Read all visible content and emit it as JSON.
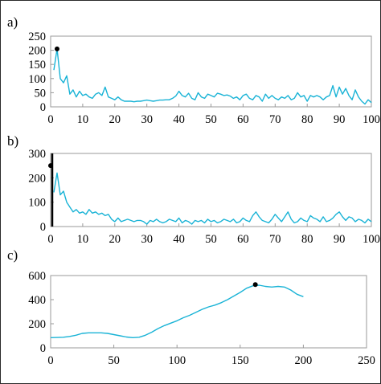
{
  "chart_data": [
    {
      "panel_label": "a)",
      "type": "line",
      "title": "",
      "xlabel": "",
      "ylabel": "",
      "xlim": [
        0,
        100
      ],
      "ylim": [
        0,
        250
      ],
      "xticks": [
        0,
        10,
        20,
        30,
        40,
        50,
        60,
        70,
        80,
        90,
        100
      ],
      "yticks": [
        0,
        50,
        100,
        150,
        200,
        250
      ],
      "grid": false,
      "line_color": "#19b3d6",
      "marker": {
        "x": 2,
        "y": 205,
        "color": "#000000"
      },
      "series": [
        {
          "x": [
            1,
            2,
            3,
            4,
            5,
            6,
            7,
            8,
            9,
            10,
            11,
            12,
            13,
            14,
            15,
            16,
            17,
            18,
            19,
            20,
            21,
            22,
            23,
            24,
            25,
            26,
            27,
            28,
            29,
            30,
            31,
            32,
            33,
            34,
            35,
            36,
            37,
            38,
            39,
            40,
            41,
            42,
            43,
            44,
            45,
            46,
            47,
            48,
            49,
            50,
            51,
            52,
            53,
            54,
            55,
            56,
            57,
            58,
            59,
            60,
            61,
            62,
            63,
            64,
            65,
            66,
            67,
            68,
            69,
            70,
            71,
            72,
            73,
            74,
            75,
            76,
            77,
            78,
            79,
            80,
            81,
            82,
            83,
            84,
            85,
            86,
            87,
            88,
            89,
            90,
            91,
            92,
            93,
            94,
            95,
            96,
            97,
            98,
            99,
            100
          ],
          "values": [
            130,
            205,
            100,
            85,
            110,
            45,
            60,
            35,
            55,
            40,
            45,
            35,
            30,
            45,
            50,
            40,
            70,
            35,
            30,
            25,
            35,
            25,
            20,
            20,
            20,
            18,
            20,
            20,
            22,
            24,
            22,
            20,
            22,
            24,
            24,
            25,
            25,
            30,
            38,
            55,
            40,
            35,
            48,
            30,
            25,
            50,
            35,
            30,
            45,
            40,
            35,
            48,
            45,
            40,
            42,
            38,
            30,
            35,
            25,
            40,
            45,
            30,
            25,
            40,
            35,
            20,
            45,
            30,
            40,
            30,
            25,
            35,
            30,
            40,
            25,
            30,
            50,
            35,
            40,
            20,
            40,
            35,
            40,
            35,
            25,
            35,
            40,
            75,
            35,
            70,
            45,
            65,
            40,
            25,
            60,
            35,
            20,
            10,
            25,
            15
          ]
        }
      ]
    },
    {
      "panel_label": "b)",
      "type": "line",
      "title": "",
      "xlabel": "",
      "ylabel": "",
      "xlim": [
        0,
        100
      ],
      "ylim": [
        0,
        300
      ],
      "xticks": [
        0,
        10,
        20,
        30,
        40,
        50,
        60,
        70,
        80,
        90,
        100
      ],
      "yticks": [
        0,
        100,
        200,
        300
      ],
      "grid": false,
      "line_color": "#19b3d6",
      "marker": {
        "x": 0,
        "y": 250,
        "color": "#000000"
      },
      "vline": {
        "x": 0.5,
        "y_from": 0,
        "y_to": 300,
        "color": "#000000"
      },
      "series": [
        {
          "x": [
            1,
            2,
            3,
            4,
            5,
            6,
            7,
            8,
            9,
            10,
            11,
            12,
            13,
            14,
            15,
            16,
            17,
            18,
            19,
            20,
            21,
            22,
            23,
            24,
            25,
            26,
            27,
            28,
            29,
            30,
            31,
            32,
            33,
            34,
            35,
            36,
            37,
            38,
            39,
            40,
            41,
            42,
            43,
            44,
            45,
            46,
            47,
            48,
            49,
            50,
            51,
            52,
            53,
            54,
            55,
            56,
            57,
            58,
            59,
            60,
            61,
            62,
            63,
            64,
            65,
            66,
            67,
            68,
            69,
            70,
            71,
            72,
            73,
            74,
            75,
            76,
            77,
            78,
            79,
            80,
            81,
            82,
            83,
            84,
            85,
            86,
            87,
            88,
            89,
            90,
            91,
            92,
            93,
            94,
            95,
            96,
            97,
            98,
            99,
            100
          ],
          "values": [
            140,
            220,
            130,
            145,
            100,
            80,
            60,
            70,
            55,
            60,
            50,
            70,
            55,
            60,
            50,
            55,
            45,
            50,
            30,
            20,
            35,
            20,
            25,
            30,
            25,
            20,
            25,
            25,
            20,
            10,
            25,
            20,
            30,
            20,
            15,
            20,
            30,
            25,
            20,
            35,
            15,
            25,
            20,
            10,
            25,
            20,
            25,
            15,
            30,
            20,
            25,
            15,
            20,
            30,
            25,
            20,
            30,
            15,
            20,
            35,
            25,
            20,
            45,
            60,
            40,
            25,
            20,
            15,
            30,
            50,
            35,
            20,
            40,
            60,
            30,
            15,
            20,
            35,
            25,
            20,
            45,
            35,
            30,
            20,
            40,
            20,
            25,
            35,
            50,
            60,
            40,
            25,
            40,
            35,
            20,
            30,
            25,
            15,
            30,
            20
          ]
        }
      ]
    },
    {
      "panel_label": "c)",
      "type": "line",
      "title": "",
      "xlabel": "",
      "ylabel": "",
      "xlim": [
        0,
        250
      ],
      "ylim": [
        0,
        600
      ],
      "xticks": [
        0,
        50,
        100,
        150,
        200,
        250
      ],
      "yticks": [
        0,
        200,
        400,
        600
      ],
      "grid": false,
      "line_color": "#19b3d6",
      "marker": {
        "x": 162,
        "y": 525,
        "color": "#000000"
      },
      "series": [
        {
          "x": [
            0,
            5,
            10,
            15,
            20,
            25,
            30,
            35,
            40,
            45,
            50,
            55,
            60,
            65,
            70,
            75,
            80,
            85,
            90,
            95,
            100,
            105,
            110,
            115,
            120,
            125,
            130,
            135,
            140,
            145,
            150,
            155,
            160,
            165,
            170,
            175,
            180,
            185,
            190,
            195,
            200
          ],
          "values": [
            85,
            86,
            88,
            95,
            105,
            120,
            125,
            125,
            125,
            120,
            110,
            100,
            90,
            85,
            88,
            105,
            130,
            160,
            185,
            205,
            225,
            250,
            270,
            295,
            320,
            340,
            355,
            375,
            400,
            430,
            460,
            495,
            515,
            520,
            510,
            505,
            510,
            505,
            480,
            445,
            425
          ]
        }
      ]
    }
  ]
}
